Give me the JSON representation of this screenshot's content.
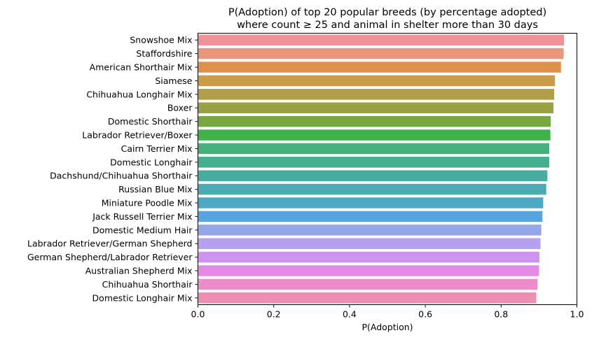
{
  "chart_data": {
    "type": "bar",
    "orientation": "horizontal",
    "title_lines": [
      "P(Adoption) of top 20 popular breeds (by percentage adopted)",
      "where count ≥ 25 and animal in shelter more than 30 days"
    ],
    "xlabel": "P(Adoption)",
    "ylabel": "",
    "xlim": [
      0,
      1.0
    ],
    "xticks": [
      "0.0",
      "0.2",
      "0.4",
      "0.6",
      "0.8",
      "1.0"
    ],
    "grid": false,
    "categories": [
      "Snowshoe Mix",
      "Staffordshire",
      "American Shorthair Mix",
      "Siamese",
      "Chihuahua Longhair Mix",
      "Boxer",
      "Domestic Shorthair",
      "Labrador Retriever/Boxer",
      "Cairn Terrier Mix",
      "Domestic Longhair",
      "Dachshund/Chihuahua Shorthair",
      "Russian Blue Mix",
      "Miniature Poodle Mix",
      "Jack Russell Terrier Mix",
      "Domestic Medium Hair",
      "Labrador Retriever/German Shepherd",
      "German Shepherd/Labrador Retriever",
      "Australian Shepherd Mix",
      "Chihuahua Shorthair",
      "Domestic Longhair Mix"
    ],
    "values": [
      0.966,
      0.965,
      0.958,
      0.942,
      0.94,
      0.938,
      0.931,
      0.93,
      0.927,
      0.927,
      0.922,
      0.919,
      0.911,
      0.909,
      0.906,
      0.904,
      0.901,
      0.9,
      0.896,
      0.893
    ],
    "colors": [
      "#f0929a",
      "#e9967c",
      "#e18f4d",
      "#c99c4a",
      "#b19e47",
      "#9aa044",
      "#79a843",
      "#3fb24b",
      "#44b27a",
      "#46af8d",
      "#48ad9f",
      "#4aabb0",
      "#4ea8c3",
      "#57a4df",
      "#95a6ea",
      "#b4a1ef",
      "#cc93ef",
      "#e589e6",
      "#ef8bca",
      "#ee8eb2"
    ]
  }
}
